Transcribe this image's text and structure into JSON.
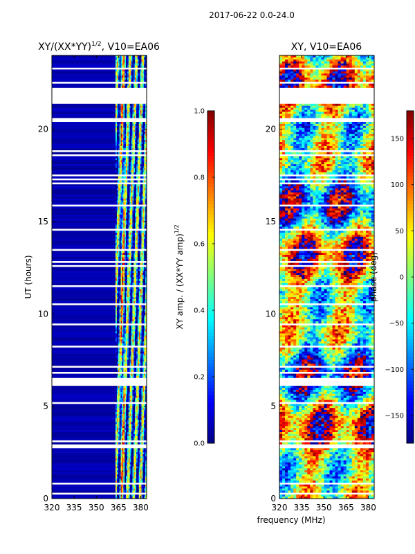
{
  "figure": {
    "suptitle": "2017-06-22 0.0-24.0",
    "shared_xlabel": "frequency (MHz)"
  },
  "chart_data": [
    {
      "type": "heatmap",
      "title_main": "XY/(XX*YY)",
      "title_sup": "1/2",
      "title_rest": ", V10=EA06",
      "ylabel": "UT (hours)",
      "xlim": [
        320,
        384
      ],
      "ylim": [
        0,
        24
      ],
      "xticks": [
        320,
        335,
        350,
        365,
        380
      ],
      "yticks": [
        0,
        5,
        10,
        15,
        20
      ],
      "gaps_hours": [
        [
          21.4,
          22.3
        ]
      ],
      "colorbar": {
        "label_main": "XY amp. / (XX*YY amp)",
        "label_sup": "1/2",
        "range": [
          0.0,
          1.0
        ],
        "ticks": [
          "0.0",
          "0.2",
          "0.4",
          "0.6",
          "0.8",
          "1.0"
        ],
        "colormap": "jet"
      }
    },
    {
      "type": "heatmap",
      "title": "XY, V10=EA06",
      "xlim": [
        320,
        384
      ],
      "ylim": [
        0,
        24
      ],
      "xticks": [
        320,
        335,
        350,
        365,
        380
      ],
      "yticks": [
        0,
        5,
        10,
        15,
        20
      ],
      "gaps_hours": [
        [
          21.4,
          22.3
        ]
      ],
      "colorbar": {
        "label": "phase (deg)",
        "range": [
          -180,
          180
        ],
        "ticks": [
          "−150",
          "−100",
          "−50",
          "0",
          "50",
          "100",
          "150"
        ],
        "tick_values": [
          -150,
          -100,
          -50,
          0,
          50,
          100,
          150
        ],
        "colormap": "jet"
      }
    }
  ]
}
